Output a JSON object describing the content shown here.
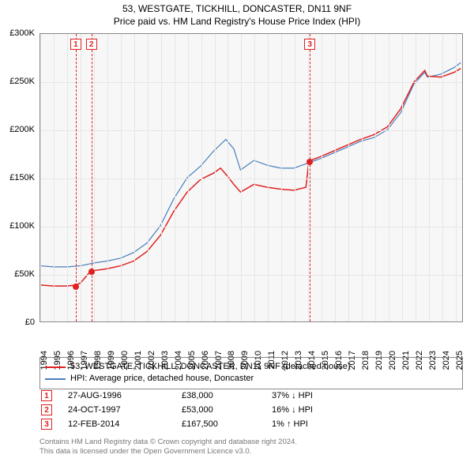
{
  "title": {
    "main": "53, WESTGATE, TICKHILL, DONCASTER, DN11 9NF",
    "sub": "Price paid vs. HM Land Registry's House Price Index (HPI)"
  },
  "chart": {
    "type": "line",
    "background_color": "#f7f7f7",
    "grid_color": "#e6e6e6",
    "border_color": "#888888",
    "x_range": [
      1994,
      2025.6
    ],
    "y_range": [
      0,
      300000
    ],
    "y_ticks": [
      {
        "v": 0,
        "label": "£0"
      },
      {
        "v": 50000,
        "label": "£50K"
      },
      {
        "v": 100000,
        "label": "£100K"
      },
      {
        "v": 150000,
        "label": "£150K"
      },
      {
        "v": 200000,
        "label": "£200K"
      },
      {
        "v": 250000,
        "label": "£250K"
      },
      {
        "v": 300000,
        "label": "£300K"
      }
    ],
    "x_ticks": [
      1994,
      1995,
      1996,
      1997,
      1998,
      1999,
      2000,
      2001,
      2002,
      2003,
      2004,
      2005,
      2006,
      2007,
      2008,
      2009,
      2010,
      2011,
      2012,
      2013,
      2014,
      2015,
      2016,
      2017,
      2018,
      2019,
      2020,
      2021,
      2022,
      2023,
      2024,
      2025
    ],
    "x_tick_fontsize": 11,
    "y_tick_fontsize": 11,
    "series": [
      {
        "id": "hpi",
        "label": "HPI: Average price, detached house, Doncaster",
        "color": "#4a7ebb",
        "line_width": 1.2,
        "points": [
          [
            1994.0,
            58000
          ],
          [
            1995.0,
            57000
          ],
          [
            1996.0,
            57000
          ],
          [
            1997.0,
            58000
          ],
          [
            1998.0,
            61000
          ],
          [
            1999.0,
            63000
          ],
          [
            2000.0,
            66000
          ],
          [
            2001.0,
            72000
          ],
          [
            2002.0,
            82000
          ],
          [
            2003.0,
            100000
          ],
          [
            2004.0,
            128000
          ],
          [
            2005.0,
            150000
          ],
          [
            2006.0,
            162000
          ],
          [
            2007.0,
            178000
          ],
          [
            2007.9,
            190000
          ],
          [
            2008.5,
            180000
          ],
          [
            2009.0,
            158000
          ],
          [
            2010.0,
            168000
          ],
          [
            2011.0,
            163000
          ],
          [
            2012.0,
            160000
          ],
          [
            2013.0,
            160000
          ],
          [
            2014.0,
            165000
          ],
          [
            2015.0,
            170000
          ],
          [
            2016.0,
            176000
          ],
          [
            2017.0,
            182000
          ],
          [
            2018.0,
            188000
          ],
          [
            2019.0,
            192000
          ],
          [
            2020.0,
            200000
          ],
          [
            2021.0,
            218000
          ],
          [
            2022.0,
            248000
          ],
          [
            2022.8,
            260000
          ],
          [
            2023.0,
            255000
          ],
          [
            2024.0,
            258000
          ],
          [
            2025.0,
            265000
          ],
          [
            2025.5,
            270000
          ]
        ]
      },
      {
        "id": "property",
        "label": "53, WESTGATE, TICKHILL, DONCASTER, DN11 9NF (detached house)",
        "color": "#e02020",
        "line_width": 1.5,
        "points": [
          [
            1994.0,
            38000
          ],
          [
            1995.0,
            37000
          ],
          [
            1996.0,
            37000
          ],
          [
            1996.65,
            38000
          ],
          [
            1997.0,
            40000
          ],
          [
            1997.8,
            53000
          ],
          [
            1998.0,
            53000
          ],
          [
            1999.0,
            55000
          ],
          [
            2000.0,
            58000
          ],
          [
            2001.0,
            63000
          ],
          [
            2002.0,
            73000
          ],
          [
            2003.0,
            90000
          ],
          [
            2004.0,
            115000
          ],
          [
            2005.0,
            135000
          ],
          [
            2006.0,
            148000
          ],
          [
            2007.0,
            155000
          ],
          [
            2007.5,
            160000
          ],
          [
            2008.0,
            152000
          ],
          [
            2008.5,
            143000
          ],
          [
            2009.0,
            135000
          ],
          [
            2010.0,
            143000
          ],
          [
            2011.0,
            140000
          ],
          [
            2012.0,
            138000
          ],
          [
            2013.0,
            137000
          ],
          [
            2013.9,
            140000
          ],
          [
            2014.12,
            167500
          ],
          [
            2015.0,
            172000
          ],
          [
            2016.0,
            178000
          ],
          [
            2017.0,
            184000
          ],
          [
            2018.0,
            190000
          ],
          [
            2019.0,
            195000
          ],
          [
            2020.0,
            203000
          ],
          [
            2021.0,
            222000
          ],
          [
            2022.0,
            250000
          ],
          [
            2022.8,
            262000
          ],
          [
            2023.0,
            256000
          ],
          [
            2024.0,
            255000
          ],
          [
            2025.0,
            260000
          ],
          [
            2025.5,
            264000
          ]
        ]
      }
    ],
    "markers": [
      {
        "n": "1",
        "x": 1996.65,
        "y": 38000
      },
      {
        "n": "2",
        "x": 1997.81,
        "y": 53000
      },
      {
        "n": "3",
        "x": 2014.12,
        "y": 167500
      }
    ],
    "marker_line_color": "#e02020",
    "marker_box_border": "#e02020"
  },
  "legend": {
    "rows": [
      {
        "color": "#e02020",
        "label": "53, WESTGATE, TICKHILL, DONCASTER, DN11 9NF (detached house)"
      },
      {
        "color": "#4a7ebb",
        "label": "HPI: Average price, detached house, Doncaster"
      }
    ]
  },
  "table": {
    "rows": [
      {
        "n": "1",
        "date": "27-AUG-1996",
        "price": "£38,000",
        "pct": "37% ↓ HPI"
      },
      {
        "n": "2",
        "date": "24-OCT-1997",
        "price": "£53,000",
        "pct": "16% ↓ HPI"
      },
      {
        "n": "3",
        "date": "12-FEB-2014",
        "price": "£167,500",
        "pct": "1% ↑ HPI"
      }
    ]
  },
  "footer": {
    "line1": "Contains HM Land Registry data © Crown copyright and database right 2024.",
    "line2": "This data is licensed under the Open Government Licence v3.0."
  }
}
